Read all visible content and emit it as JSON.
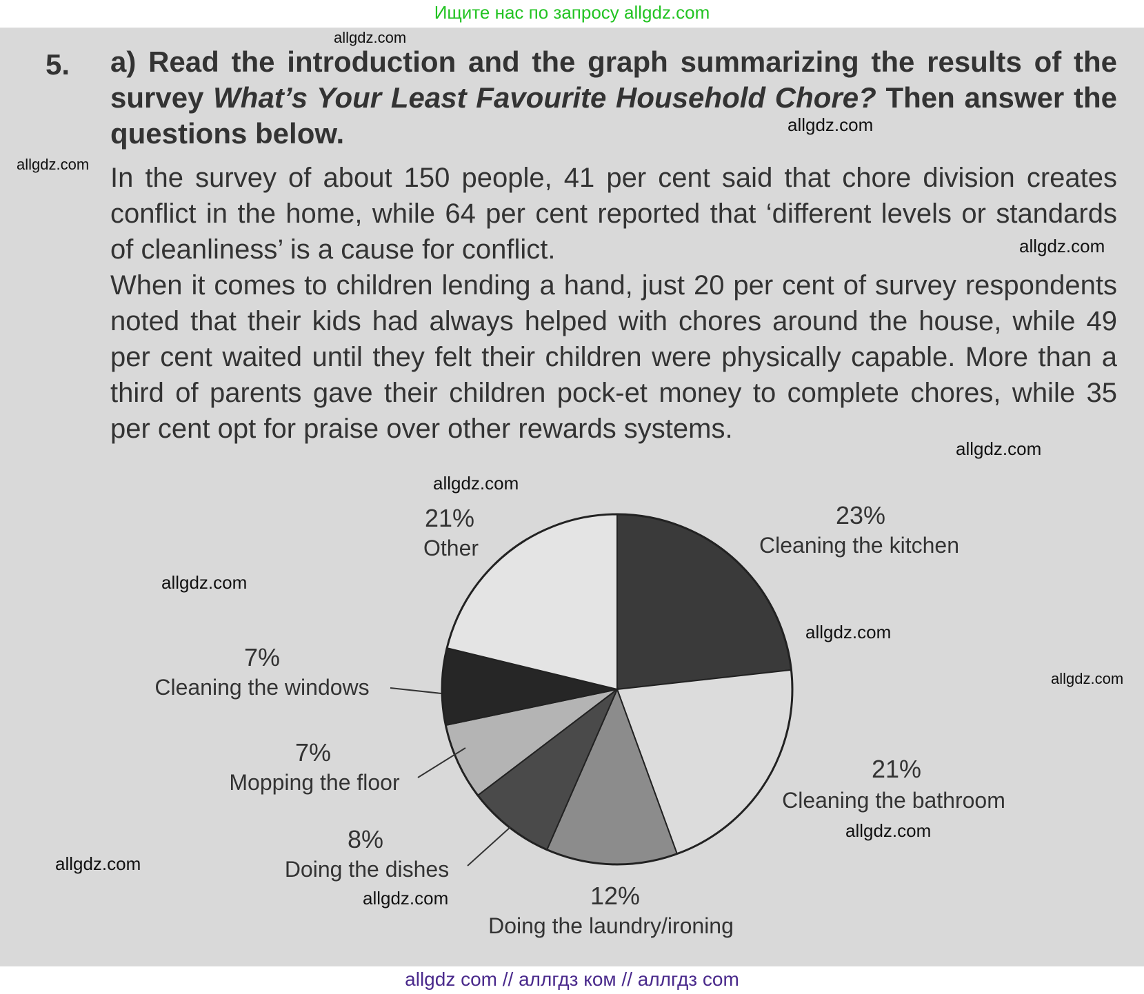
{
  "banner_top": "Ищите нас по запросу allgdz.com",
  "banner_bottom": "allgdz com  //  аллгдз ком  //  аллгдз com",
  "watermark": "allgdz.com",
  "exercise": {
    "number": "5.",
    "heading_pre": "a) Read the introduction and the graph summarizing the results of the survey ",
    "heading_title": "What’s Your Least Favourite Household Chore?",
    "heading_post": " Then answer the questions below.",
    "para1": "In the survey of about 150 people, 41 per cent said that chore division creates conflict in the home, while 64 per cent reported that ‘different levels or standards of cleanliness’ is a cause for conflict.",
    "para2": "When it comes to children lending a hand, just 20 per cent of survey respondents noted that their kids had always helped with chores around the house, while 49 per cent waited until they felt their children were physically capable. More than a third of parents gave their children pock-et money to complete chores, while 35 per cent opt for praise over other rewards systems."
  },
  "chart_data": {
    "type": "pie",
    "title": "",
    "slices": [
      {
        "label": "Cleaning the kitchen",
        "value": 23,
        "display": "23%",
        "color": "#3a3a3a"
      },
      {
        "label": "Cleaning the bathroom",
        "value": 21,
        "display": "21%",
        "color": "#dcdcdc"
      },
      {
        "label": "Doing the laundry/ironing",
        "value": 12,
        "display": "12%",
        "color": "#8c8c8c"
      },
      {
        "label": "Doing the dishes",
        "value": 8,
        "display": "8%",
        "color": "#4a4a4a"
      },
      {
        "label": "Mopping the floor",
        "value": 7,
        "display": "7%",
        "color": "#b4b4b4"
      },
      {
        "label": "Cleaning the windows",
        "value": 7,
        "display": "7%",
        "color": "#262626"
      },
      {
        "label": "Other",
        "value": 21,
        "display": "21%",
        "color": "#e4e4e4"
      }
    ],
    "start": "12 o'clock",
    "direction": "clockwise"
  }
}
